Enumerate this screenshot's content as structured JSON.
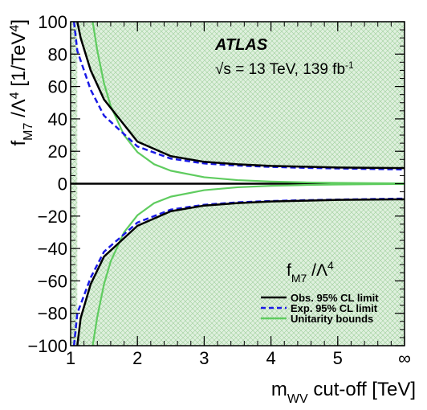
{
  "chart_data": {
    "type": "line",
    "annotations": {
      "experiment": "ATLAS",
      "energy_prefix": "√s = 13 TeV, 139 fb",
      "energy_sup": "-1"
    },
    "xlabel": {
      "main": "m",
      "sub": "WV",
      "rest": " cut-off [TeV]"
    },
    "ylabel": {
      "main": "f",
      "sub": "M7",
      "mid": " /Λ",
      "sup": "4",
      "unit": " [1/TeV",
      "unit_sup": "4",
      "close": "]"
    },
    "xlim": [
      1,
      6
    ],
    "ylim": [
      -100,
      100
    ],
    "xticks": [
      {
        "value": 1,
        "label": "1"
      },
      {
        "value": 2,
        "label": "2"
      },
      {
        "value": 3,
        "label": "3"
      },
      {
        "value": 4,
        "label": "4"
      },
      {
        "value": 5,
        "label": "5"
      },
      {
        "value": 6,
        "label": "∞"
      }
    ],
    "yticks": [
      {
        "value": 100,
        "label": "100"
      },
      {
        "value": 80,
        "label": "80"
      },
      {
        "value": 60,
        "label": "60"
      },
      {
        "value": 40,
        "label": "40"
      },
      {
        "value": 20,
        "label": "20"
      },
      {
        "value": 0,
        "label": "0"
      },
      {
        "value": -20,
        "label": "−20"
      },
      {
        "value": -40,
        "label": "−40"
      },
      {
        "value": -60,
        "label": "−60"
      },
      {
        "value": -80,
        "label": "−80"
      },
      {
        "value": -100,
        "label": "−100"
      }
    ],
    "legend": {
      "title_main": "f",
      "title_sub": "M7",
      "title_rest": " /Λ",
      "title_sup": "4",
      "placement": "bottom-right"
    },
    "series": [
      {
        "name": "Obs. 95% CL limit",
        "color": "#000000",
        "style": "solid",
        "upper": {
          "x": [
            1.1,
            1.15,
            1.3,
            1.5,
            2.0,
            2.5,
            3.0,
            3.5,
            4.0,
            4.5,
            5.0,
            5.5,
            6.0
          ],
          "y": [
            100,
            90,
            70,
            52,
            26,
            17,
            13.5,
            12,
            11,
            10.5,
            10,
            9.8,
            9.6
          ]
        },
        "lower": {
          "x": [
            1.1,
            1.15,
            1.3,
            1.5,
            2.0,
            2.5,
            3.0,
            3.5,
            4.0,
            4.5,
            5.0,
            5.5,
            6.0
          ],
          "y": [
            -100,
            -83,
            -62,
            -45,
            -26,
            -17,
            -13.5,
            -12,
            -11,
            -10.5,
            -10,
            -9.8,
            -9.6
          ]
        }
      },
      {
        "name": "Exp. 95% CL limit",
        "color": "#1a1ae6",
        "style": "dashed",
        "upper": {
          "x": [
            1.05,
            1.1,
            1.3,
            1.5,
            2.0,
            2.5,
            3.0,
            3.5,
            4.0,
            4.5,
            5.0,
            5.5,
            6.0
          ],
          "y": [
            100,
            82,
            58,
            42,
            23,
            15.5,
            12.5,
            11.2,
            10.4,
            9.8,
            9.4,
            9.1,
            8.8
          ]
        },
        "lower": {
          "x": [
            1.05,
            1.1,
            1.3,
            1.5,
            2.0,
            2.5,
            3.0,
            3.5,
            4.0,
            4.5,
            5.0,
            5.5,
            6.0
          ],
          "y": [
            -100,
            -80,
            -58,
            -42,
            -24,
            -16,
            -13,
            -11.5,
            -10.7,
            -10.2,
            -9.8,
            -9.5,
            -9.2
          ]
        }
      },
      {
        "name": "Unitarity bounds",
        "color": "#5fcc5f",
        "style": "solid",
        "upper": {
          "x": [
            1.33,
            1.4,
            1.5,
            1.6,
            1.8,
            2.0,
            2.25,
            2.5,
            3.0,
            3.5,
            4.0,
            4.5,
            5.0,
            5.5,
            6.0
          ],
          "y": [
            100,
            82,
            62,
            48,
            30,
            19.5,
            12,
            8,
            4,
            2.2,
            1.3,
            0.8,
            0.5,
            0.3,
            0.2
          ]
        },
        "lower": {
          "x": [
            1.33,
            1.4,
            1.5,
            1.6,
            1.8,
            2.0,
            2.25,
            2.5,
            3.0,
            3.5,
            4.0,
            4.5,
            5.0,
            5.5,
            6.0
          ],
          "y": [
            -100,
            -82,
            -62,
            -48,
            -30,
            -19.5,
            -12,
            -8,
            -4,
            -2.2,
            -1.3,
            -0.8,
            -0.5,
            -0.3,
            -0.2
          ]
        }
      }
    ],
    "fill_color": "#dff0de",
    "hatch_color": "#9fcf9c"
  }
}
